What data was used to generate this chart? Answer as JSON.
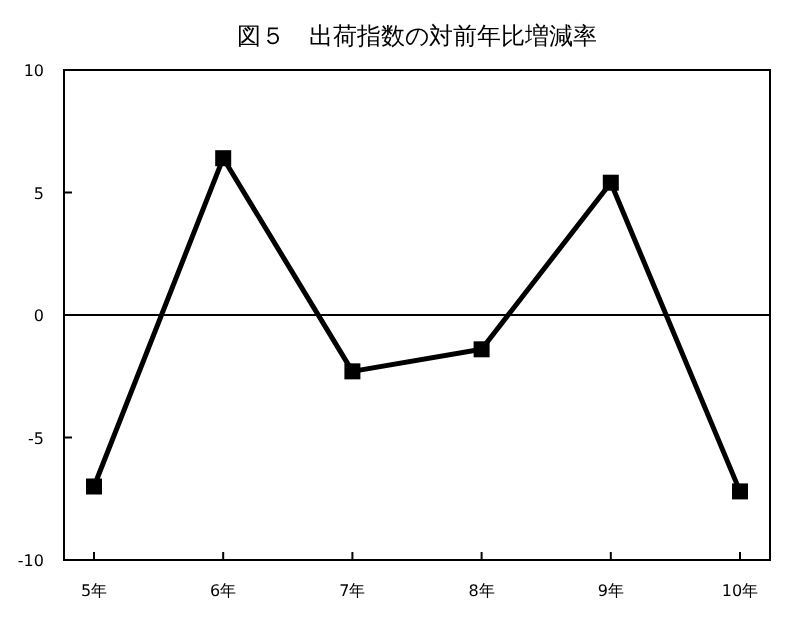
{
  "chart_data": {
    "type": "line",
    "title": "図５　出荷指数の対前年比増減率",
    "categories": [
      "5年",
      "6年",
      "7年",
      "8年",
      "9年",
      "10年"
    ],
    "series": [
      {
        "color": "#000000",
        "values": [
          -7.0,
          6.4,
          -2.3,
          -1.4,
          5.4,
          -7.2
        ]
      }
    ],
    "ylim": [
      -10,
      10
    ],
    "yticks": [
      -10,
      -5,
      0,
      5,
      10
    ],
    "ref_lines": [
      {
        "axis": "y",
        "value": 0,
        "color": "#000000"
      }
    ],
    "marker": "square",
    "line_style": "solid"
  }
}
